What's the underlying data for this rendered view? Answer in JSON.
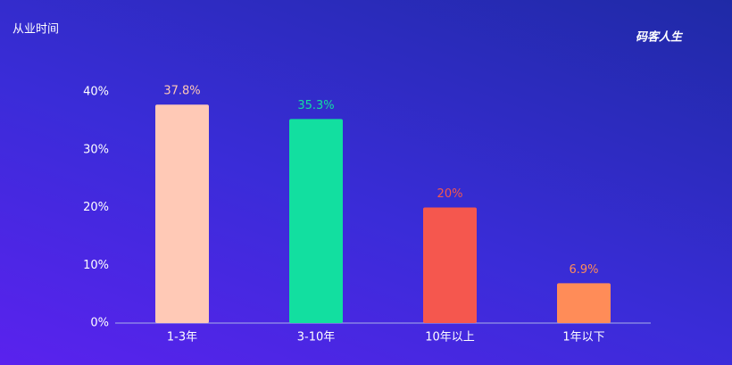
{
  "logo": "码客人生",
  "chart_data": {
    "type": "bar",
    "title": "从业时间",
    "categories": [
      "1-3年",
      "3-10年",
      "10年以上",
      "1年以下"
    ],
    "values": [
      37.8,
      35.3,
      20,
      6.9
    ],
    "value_labels": [
      "37.8%",
      "35.3%",
      "20%",
      "6.9%"
    ],
    "colors": [
      "#ffc9b6",
      "#12dfa0",
      "#f5574e",
      "#ff8c58"
    ],
    "ylim": [
      0,
      40
    ],
    "yticks": [
      {
        "value": 0,
        "label": "0%"
      },
      {
        "value": 10,
        "label": "10%"
      },
      {
        "value": 20,
        "label": "20%"
      },
      {
        "value": 30,
        "label": "30%"
      },
      {
        "value": 40,
        "label": "40%"
      }
    ],
    "grid": false
  }
}
